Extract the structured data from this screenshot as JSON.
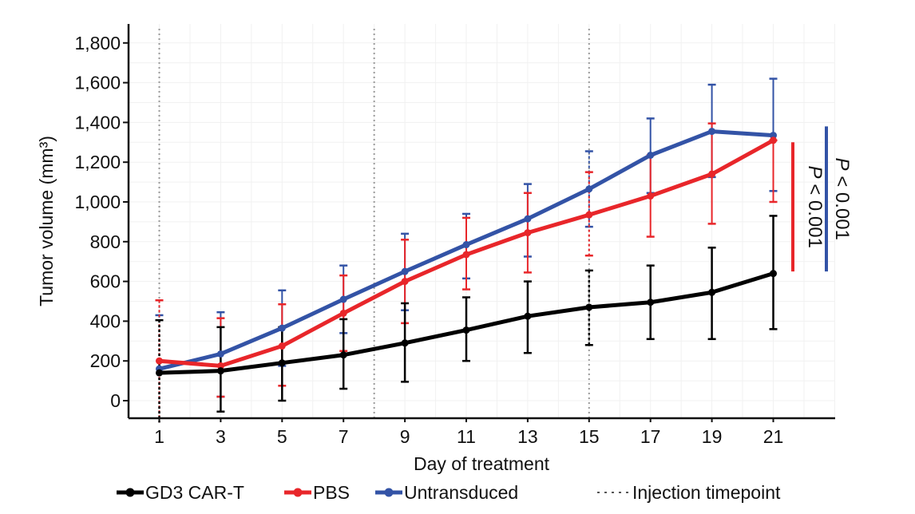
{
  "chart_data": {
    "type": "line",
    "title": "",
    "xlabel": "Day of treatment",
    "ylabel": "Tumor volume (mm³)",
    "x": [
      1,
      3,
      5,
      7,
      9,
      11,
      13,
      15,
      17,
      19,
      21
    ],
    "xticks": [
      "1",
      "3",
      "5",
      "7",
      "9",
      "11",
      "13",
      "15",
      "17",
      "19",
      "21"
    ],
    "xlim": [
      0,
      23.2
    ],
    "ylim": [
      -110,
      1860
    ],
    "yticks": [
      0,
      200,
      400,
      600,
      800,
      1000,
      1200,
      1400,
      1600,
      1800
    ],
    "ytick_labels": [
      "0",
      "200",
      "400",
      "600",
      "800",
      "1,000",
      "1,200",
      "1,400",
      "1,600",
      "1,800"
    ],
    "grid": true,
    "series": [
      {
        "name": "GD3 CAR-T",
        "color": "#000000",
        "values": [
          140,
          150,
          190,
          230,
          290,
          355,
          425,
          470,
          495,
          545,
          640
        ],
        "err_upper": [
          405,
          370,
          370,
          410,
          490,
          520,
          600,
          655,
          680,
          770,
          930
        ],
        "err_lower": [
          -110,
          -55,
          0,
          60,
          95,
          200,
          240,
          280,
          310,
          310,
          360
        ]
      },
      {
        "name": "PBS",
        "color": "#e8262a",
        "values": [
          200,
          175,
          275,
          440,
          600,
          735,
          845,
          935,
          1030,
          1140,
          1310
        ],
        "err_upper": [
          505,
          415,
          485,
          630,
          810,
          920,
          1045,
          1150,
          1235,
          1395,
          1310
        ],
        "err_lower": [
          -110,
          20,
          75,
          250,
          390,
          560,
          645,
          730,
          825,
          890,
          1000
        ]
      },
      {
        "name": "Untransduced",
        "color": "#3353a6",
        "values": [
          160,
          235,
          365,
          510,
          650,
          785,
          915,
          1065,
          1235,
          1355,
          1335
        ],
        "err_upper": [
          430,
          445,
          555,
          680,
          840,
          940,
          1090,
          1255,
          1420,
          1590,
          1620
        ],
        "err_lower": [
          -110,
          20,
          175,
          340,
          455,
          615,
          725,
          875,
          1045,
          1125,
          1055
        ]
      }
    ],
    "injection_timepoints": [
      1,
      8,
      15
    ],
    "annotations": [
      {
        "text": "P < 0.001",
        "color": "#e8262a",
        "y_range": [
          650,
          1300
        ],
        "comparison": "PBS vs GD3 CAR-T"
      },
      {
        "text": "P < 0.001",
        "color": "#3353a6",
        "y_range": [
          650,
          1380
        ],
        "comparison": "Untransduced vs GD3 CAR-T"
      }
    ],
    "legend": {
      "placement": "bottom",
      "entries": [
        {
          "label": "GD3 CAR-T",
          "color": "#000000",
          "style": "line-marker"
        },
        {
          "label": "PBS",
          "color": "#e8262a",
          "style": "line-marker"
        },
        {
          "label": "Untransduced",
          "color": "#3353a6",
          "style": "line-marker"
        },
        {
          "label": "Injection timepoint",
          "color": "#555555",
          "style": "dotted"
        }
      ]
    }
  }
}
